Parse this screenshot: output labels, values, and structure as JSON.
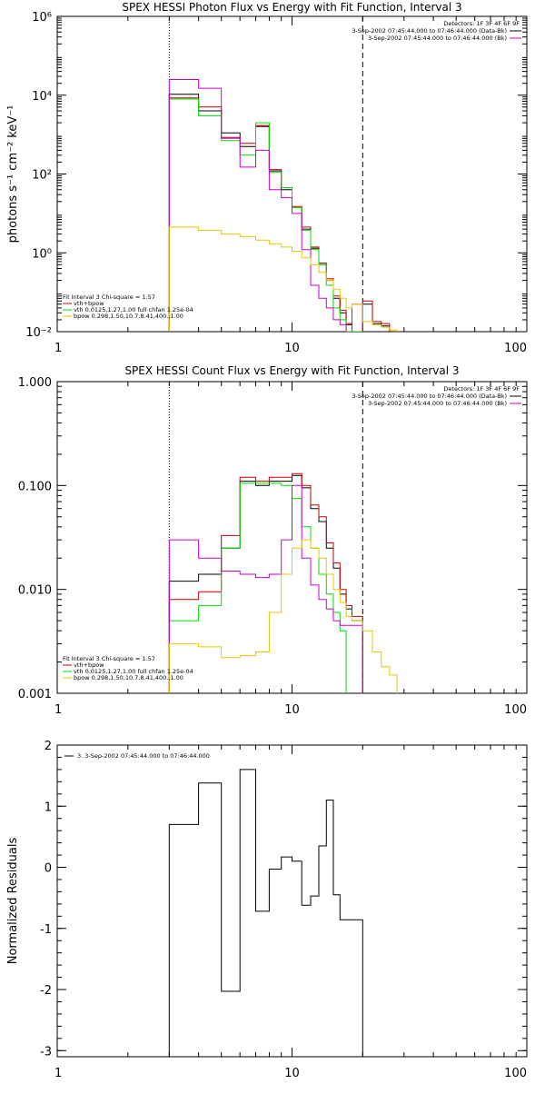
{
  "colors": {
    "data": "#000000",
    "total": "#cc0000",
    "vth": "#00dd00",
    "bpow": "#e6c800",
    "background": "#cc00cc",
    "axis": "#000000"
  },
  "chart_data": [
    {
      "type": "line",
      "step": true,
      "title": "SPEX HESSI Photon Flux vs Energy with Fit Function, Interval 3",
      "ylabel": "photons s⁻¹ cm⁻² keV⁻¹",
      "xlabel": "",
      "xscale": "log",
      "yscale": "log",
      "xlim": [
        1,
        100
      ],
      "ylim": [
        0.01,
        1000000
      ],
      "xticks": [
        1,
        10,
        100
      ],
      "xticklabels": [
        "1",
        "10",
        "100"
      ],
      "yticks": [
        0.01,
        1,
        100,
        10000,
        1000000
      ],
      "yticklabels": [
        "10⁻²",
        "10⁰",
        "10²",
        "10⁴",
        "10⁶"
      ],
      "grid": false,
      "legend_position": "top-right",
      "legend_header": "Detectors: 1F 3F 4F 6F 9F",
      "legend": [
        {
          "label": "3-Sep-2002 07:45:44.000 to 07:46:44.000 (Data-Bk)",
          "color": "#000000"
        },
        {
          "label": "3-Sep-2002 07:45:44.000 to 07:46:44.000 (Bk)",
          "color": "#cc00cc"
        }
      ],
      "fit_legend_position": "bottom-left",
      "fit_legend_header": "Fit Interval 3   Chi-square = 1.57",
      "fit_legend": [
        {
          "label": "vth+bpow",
          "color": "#cc0000"
        },
        {
          "label": "vth 0.0125,1.27,1.00  full chfan 1.25e-04",
          "color": "#00dd00"
        },
        {
          "label": "bpow 0.298,1.50,10.7,8.41,400.,1.00",
          "color": "#e6c800"
        }
      ],
      "vlines": [
        {
          "x": 3,
          "style": "dotted"
        },
        {
          "x": 20,
          "style": "dashed"
        }
      ],
      "bin_edges": [
        3,
        4,
        5,
        6,
        7,
        8,
        9,
        10,
        11,
        12,
        13,
        14,
        15,
        16,
        17,
        18,
        20,
        22,
        24,
        26,
        28
      ],
      "series": [
        {
          "name": "data",
          "color": "#000000",
          "values": [
            10500,
            4000,
            1100,
            500,
            1600,
            120,
            40,
            14,
            4,
            1.3,
            0.5,
            0.2,
            0.07,
            0.03,
            0.015,
            0.006,
            0.05,
            0.016,
            0.014,
            null
          ]
        },
        {
          "name": "total",
          "color": "#cc0000",
          "values": [
            8500,
            5000,
            850,
            600,
            1700,
            130,
            45,
            15,
            4.5,
            1.4,
            0.55,
            0.22,
            0.08,
            0.035,
            0.016,
            0.007,
            0.06,
            0.018,
            0.016,
            null
          ]
        },
        {
          "name": "vth",
          "color": "#00dd00",
          "values": [
            8000,
            3000,
            700,
            300,
            2000,
            110,
            45,
            14,
            3.7,
            1.2,
            0.5,
            0.15,
            0.04,
            0.02,
            0.01,
            0.01,
            null,
            null,
            null,
            null
          ]
        },
        {
          "name": "background",
          "color": "#cc00cc",
          "values": [
            25000,
            15000,
            800,
            150,
            400,
            40,
            25,
            10,
            1.2,
            0.15,
            0.07,
            0.04,
            0.02,
            0.015,
            0.005,
            0.05,
            null,
            null,
            null,
            null
          ]
        },
        {
          "name": "bpow",
          "color": "#e6c800",
          "values": [
            4.5,
            3.7,
            3,
            2.6,
            2.1,
            1.7,
            1.4,
            1.1,
            0.75,
            0.5,
            0.32,
            0.2,
            0.12,
            0.07,
            0.04,
            0.05,
            0.018,
            0.015,
            0.013,
            0.011
          ]
        }
      ]
    },
    {
      "type": "line",
      "step": true,
      "title": "SPEX HESSI Count Flux vs Energy with Fit Function, Interval 3",
      "ylabel": "",
      "xlabel": "",
      "xscale": "log",
      "yscale": "log",
      "xlim": [
        1,
        100
      ],
      "ylim": [
        0.001,
        1.0
      ],
      "xticks": [
        1,
        10,
        100
      ],
      "xticklabels": [
        "1",
        "10",
        "100"
      ],
      "yticks": [
        0.001,
        0.01,
        0.1,
        1.0
      ],
      "yticklabels": [
        "0.001",
        "0.010",
        "0.100",
        "1.000"
      ],
      "grid": false,
      "legend_position": "top-right",
      "legend_header": "Detectors: 1F 3F 4F 6F 9F",
      "legend": [
        {
          "label": "3-Sep-2002 07:45:44.000 to 07:46:44.000 (Data-Bk)",
          "color": "#000000"
        },
        {
          "label": "3-Sep-2002 07:45:44.000 to 07:46:44.000 (Bk)",
          "color": "#cc00cc"
        }
      ],
      "fit_legend_position": "bottom-left",
      "fit_legend_header": "Fit Interval 3   Chi-square = 1.57",
      "fit_legend": [
        {
          "label": "vth+bpow",
          "color": "#cc0000"
        },
        {
          "label": "vth 0.0125,1.27,1.00  full chfan 1.25e-04",
          "color": "#00dd00"
        },
        {
          "label": "bpow 0.298,1.50,10.7,8.41,400.,1.00",
          "color": "#e6c800"
        }
      ],
      "vlines": [
        {
          "x": 3,
          "style": "dotted"
        },
        {
          "x": 20,
          "style": "dashed"
        }
      ],
      "bin_edges": [
        3,
        4,
        5,
        6,
        7,
        8,
        9,
        10,
        11,
        12,
        13,
        14,
        15,
        16,
        17,
        18,
        20,
        22,
        24,
        26,
        28
      ],
      "series": [
        {
          "name": "data",
          "color": "#000000",
          "values": [
            0.012,
            0.014,
            0.025,
            0.11,
            0.1,
            0.11,
            0.11,
            0.125,
            0.095,
            0.06,
            0.045,
            0.025,
            0.016,
            0.009,
            0.0065,
            0.005,
            null,
            null,
            null,
            null
          ]
        },
        {
          "name": "total",
          "color": "#cc0000",
          "values": [
            0.008,
            0.0095,
            0.033,
            0.12,
            0.11,
            0.12,
            0.12,
            0.13,
            0.1,
            0.065,
            0.05,
            0.028,
            0.018,
            0.01,
            0.007,
            0.0055,
            null,
            null,
            null,
            null
          ]
        },
        {
          "name": "vth",
          "color": "#00dd00",
          "values": [
            0.005,
            0.007,
            0.025,
            0.105,
            0.105,
            0.105,
            0.1,
            0.075,
            0.04,
            0.025,
            0.014,
            0.009,
            0.006,
            0.004,
            null,
            null,
            null,
            null,
            null,
            null
          ]
        },
        {
          "name": "background",
          "color": "#cc00cc",
          "values": [
            0.03,
            0.02,
            0.015,
            0.014,
            0.013,
            0.014,
            0.03,
            0.1,
            0.02,
            0.011,
            0.008,
            0.0065,
            0.005,
            0.0045,
            0.0045,
            0.0045,
            null,
            null,
            null,
            null
          ]
        },
        {
          "name": "bpow",
          "color": "#e6c800",
          "values": [
            0.003,
            0.0028,
            0.0022,
            0.0023,
            0.0025,
            0.006,
            0.014,
            0.025,
            0.03,
            0.025,
            0.02,
            0.014,
            0.01,
            0.0075,
            0.0055,
            0.005,
            0.004,
            0.0025,
            0.0018,
            0.0015
          ]
        }
      ]
    },
    {
      "type": "line",
      "step": true,
      "title": "",
      "ylabel": "Normalized Residuals",
      "xlabel": "",
      "xscale": "log",
      "yscale": "linear",
      "xlim": [
        1,
        100
      ],
      "ylim": [
        -3.1,
        2
      ],
      "xticks": [
        1,
        10,
        100
      ],
      "xticklabels": [
        "1",
        "10",
        "100"
      ],
      "yticks": [
        -3,
        -2,
        -1,
        0,
        1,
        2
      ],
      "yticklabels": [
        "-3",
        "-2",
        "-1",
        "0",
        "1",
        "2"
      ],
      "grid": false,
      "legend_position": "top-left",
      "legend": [
        {
          "label": "3.  3-Sep-2002 07:45:44.000 to 07:46:44.000",
          "color": "#000000"
        }
      ],
      "bin_edges": [
        3,
        4,
        5,
        6,
        7,
        8,
        9,
        10,
        11,
        12,
        13,
        14,
        15,
        16,
        17,
        18,
        20
      ],
      "series": [
        {
          "name": "residuals",
          "color": "#000000",
          "values": [
            0.7,
            1.38,
            -2.03,
            1.6,
            -0.72,
            -0.03,
            0.17,
            0.1,
            -0.62,
            -0.47,
            0.35,
            1.1,
            -0.45,
            -0.86,
            -0.86,
            -0.86
          ]
        }
      ]
    }
  ]
}
